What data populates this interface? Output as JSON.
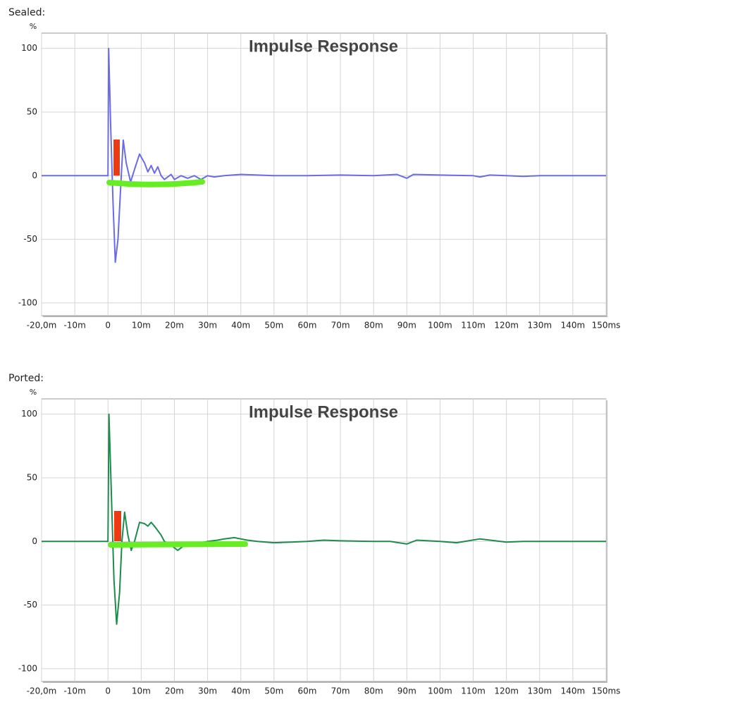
{
  "chart_data": [
    {
      "type": "line",
      "caption": "Sealed:",
      "title": "Impulse Response",
      "ylabel": "%",
      "color": "#6b6be8",
      "xlim": [
        -20,
        150
      ],
      "ylim": [
        -110,
        112
      ],
      "grid": true,
      "yticks": [
        100,
        50,
        0,
        -50,
        -100
      ],
      "xticks": [
        {
          "value": -20,
          "label": "-20,0m"
        },
        {
          "value": -10,
          "label": "-10m"
        },
        0,
        {
          "value": 10,
          "label": "10m"
        },
        {
          "value": 20,
          "label": "20m"
        },
        {
          "value": 30,
          "label": "30m"
        },
        {
          "value": 40,
          "label": "40m"
        },
        {
          "value": 50,
          "label": "50m"
        },
        {
          "value": 60,
          "label": "60m"
        },
        {
          "value": 70,
          "label": "70m"
        },
        {
          "value": 80,
          "label": "80m"
        },
        {
          "value": 90,
          "label": "90m"
        },
        {
          "value": 100,
          "label": "100m"
        },
        {
          "value": 110,
          "label": "110m"
        },
        {
          "value": 120,
          "label": "120m"
        },
        {
          "value": 130,
          "label": "130m"
        },
        {
          "value": 140,
          "label": "140m"
        },
        {
          "value": 150,
          "label": "150ms"
        }
      ],
      "x": [
        -20,
        -1,
        0,
        0.2,
        0.8,
        1.5,
        2.2,
        3,
        4,
        4.6,
        5.5,
        6.8,
        8,
        9.5,
        11,
        12,
        13,
        14,
        15,
        16,
        17,
        19,
        20,
        22,
        24,
        26,
        28,
        30,
        32,
        35,
        40,
        50,
        60,
        70,
        80,
        87,
        90,
        92,
        100,
        110,
        112,
        115,
        120,
        125,
        130,
        140,
        150
      ],
      "values": [
        0,
        0,
        0,
        100,
        40,
        -20,
        -68,
        -50,
        0,
        28,
        10,
        -5,
        5,
        17,
        10,
        3,
        8,
        2,
        7,
        0,
        -3,
        1,
        -3,
        0,
        -2,
        0,
        -3,
        0,
        -1,
        0,
        1,
        0,
        0,
        0.5,
        0,
        1,
        -2,
        1,
        0.5,
        0,
        -1,
        0.5,
        0,
        -0.5,
        0,
        0,
        0
      ]
    },
    {
      "type": "line",
      "caption": "Ported:",
      "title": "Impulse Response",
      "ylabel": "%",
      "color": "#1f8a4c",
      "xlim": [
        -20,
        150
      ],
      "ylim": [
        -110,
        112
      ],
      "grid": true,
      "yticks": [
        100,
        50,
        0,
        -50,
        -100
      ],
      "xticks": [
        {
          "value": -20,
          "label": "-20,0m"
        },
        {
          "value": -10,
          "label": "-10m"
        },
        0,
        {
          "value": 10,
          "label": "10m"
        },
        {
          "value": 20,
          "label": "20m"
        },
        {
          "value": 30,
          "label": "30m"
        },
        {
          "value": 40,
          "label": "40m"
        },
        {
          "value": 50,
          "label": "50m"
        },
        {
          "value": 60,
          "label": "60m"
        },
        {
          "value": 70,
          "label": "70m"
        },
        {
          "value": 80,
          "label": "80m"
        },
        {
          "value": 90,
          "label": "90m"
        },
        {
          "value": 100,
          "label": "100m"
        },
        {
          "value": 110,
          "label": "110m"
        },
        {
          "value": 120,
          "label": "120m"
        },
        {
          "value": 130,
          "label": "130m"
        },
        {
          "value": 140,
          "label": "140m"
        },
        {
          "value": 150,
          "label": "150ms"
        }
      ],
      "x": [
        -20,
        -1,
        0,
        0.3,
        1,
        1.8,
        2.6,
        3.5,
        4.2,
        5,
        6,
        7,
        8,
        9.5,
        11,
        12,
        13,
        14,
        16,
        17,
        19,
        21,
        23,
        26,
        30,
        33,
        35,
        38,
        40,
        42,
        45,
        50,
        55,
        60,
        65,
        70,
        80,
        85,
        90,
        93,
        100,
        105,
        112,
        120,
        125,
        140,
        150
      ],
      "values": [
        0,
        0,
        0,
        100,
        40,
        -30,
        -65,
        -40,
        0,
        23,
        5,
        -7,
        0,
        15,
        14,
        12,
        15,
        12,
        5,
        0,
        -3,
        -7,
        -3,
        -2,
        0,
        1,
        2,
        3,
        2,
        1,
        0,
        -1,
        -0.5,
        0,
        1,
        0.5,
        0,
        0,
        -2,
        1,
        0,
        -1,
        2,
        -0.5,
        0,
        0,
        0
      ]
    }
  ]
}
